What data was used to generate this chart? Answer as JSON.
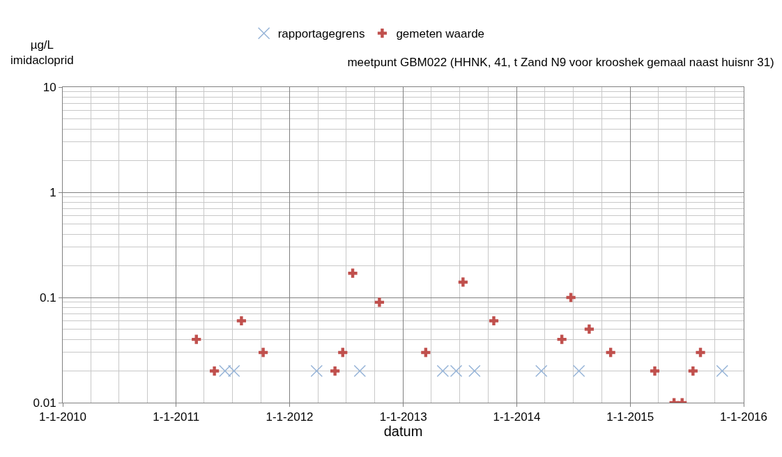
{
  "chart_data": {
    "type": "scatter",
    "title": "meetpunt GBM022 (HHNK, 41, t Zand N9 voor krooshek gemaal naast huisnr 31)",
    "xlabel": "datum",
    "ylabel": "µg/L\nimidacloprid",
    "series": [
      {
        "name": "rapportagegrens",
        "color": "#95b3d7",
        "x": [
          "2011-06-07",
          "2011-07-06",
          "2012-03-28",
          "2012-08-14",
          "2013-05-08",
          "2013-06-20",
          "2013-08-18",
          "2014-03-21",
          "2014-07-20",
          "2015-10-24"
        ],
        "values": [
          0.02,
          0.02,
          0.02,
          0.02,
          0.02,
          0.02,
          0.02,
          0.02,
          0.02,
          0.02
        ]
      },
      {
        "name": "gemeten waarde",
        "color": "#c0504d",
        "marker": "cross",
        "x": [
          "2011-03-07",
          "2011-05-04",
          "2011-07-30",
          "2011-10-08",
          "2012-05-26",
          "2012-06-20",
          "2012-07-22",
          "2012-10-16",
          "2013-03-14",
          "2013-07-12",
          "2013-10-19",
          "2014-05-26",
          "2014-06-24",
          "2014-08-22",
          "2014-10-30",
          "2015-03-21",
          "2015-05-22",
          "2015-06-17",
          "2015-07-22",
          "2015-08-15"
        ],
        "values": [
          0.04,
          0.02,
          0.06,
          0.03,
          0.02,
          0.03,
          0.17,
          0.09,
          0.03,
          0.14,
          0.06,
          0.04,
          0.1,
          0.05,
          0.03,
          0.02,
          0.01,
          0.01,
          0.02,
          0.03
        ]
      }
    ],
    "log": "y",
    "grid": true,
    "legend": "top",
    "xlim": [
      "2010-01-01",
      "2016-01-01"
    ],
    "xticks": [
      {
        "value": "2010-01-01",
        "label": "1-1-2010"
      },
      {
        "value": "2011-01-01",
        "label": "1-1-2011"
      },
      {
        "value": "2012-01-01",
        "label": "1-1-2012"
      },
      {
        "value": "2013-01-01",
        "label": "1-1-2013"
      },
      {
        "value": "2014-01-01",
        "label": "1-1-2014"
      },
      {
        "value": "2015-01-01",
        "label": "1-1-2015"
      },
      {
        "value": "2016-01-01",
        "label": "1-1-2016"
      }
    ],
    "ylim": [
      0.01,
      10
    ],
    "yticks": [
      0.01,
      0.1,
      1,
      10
    ]
  }
}
